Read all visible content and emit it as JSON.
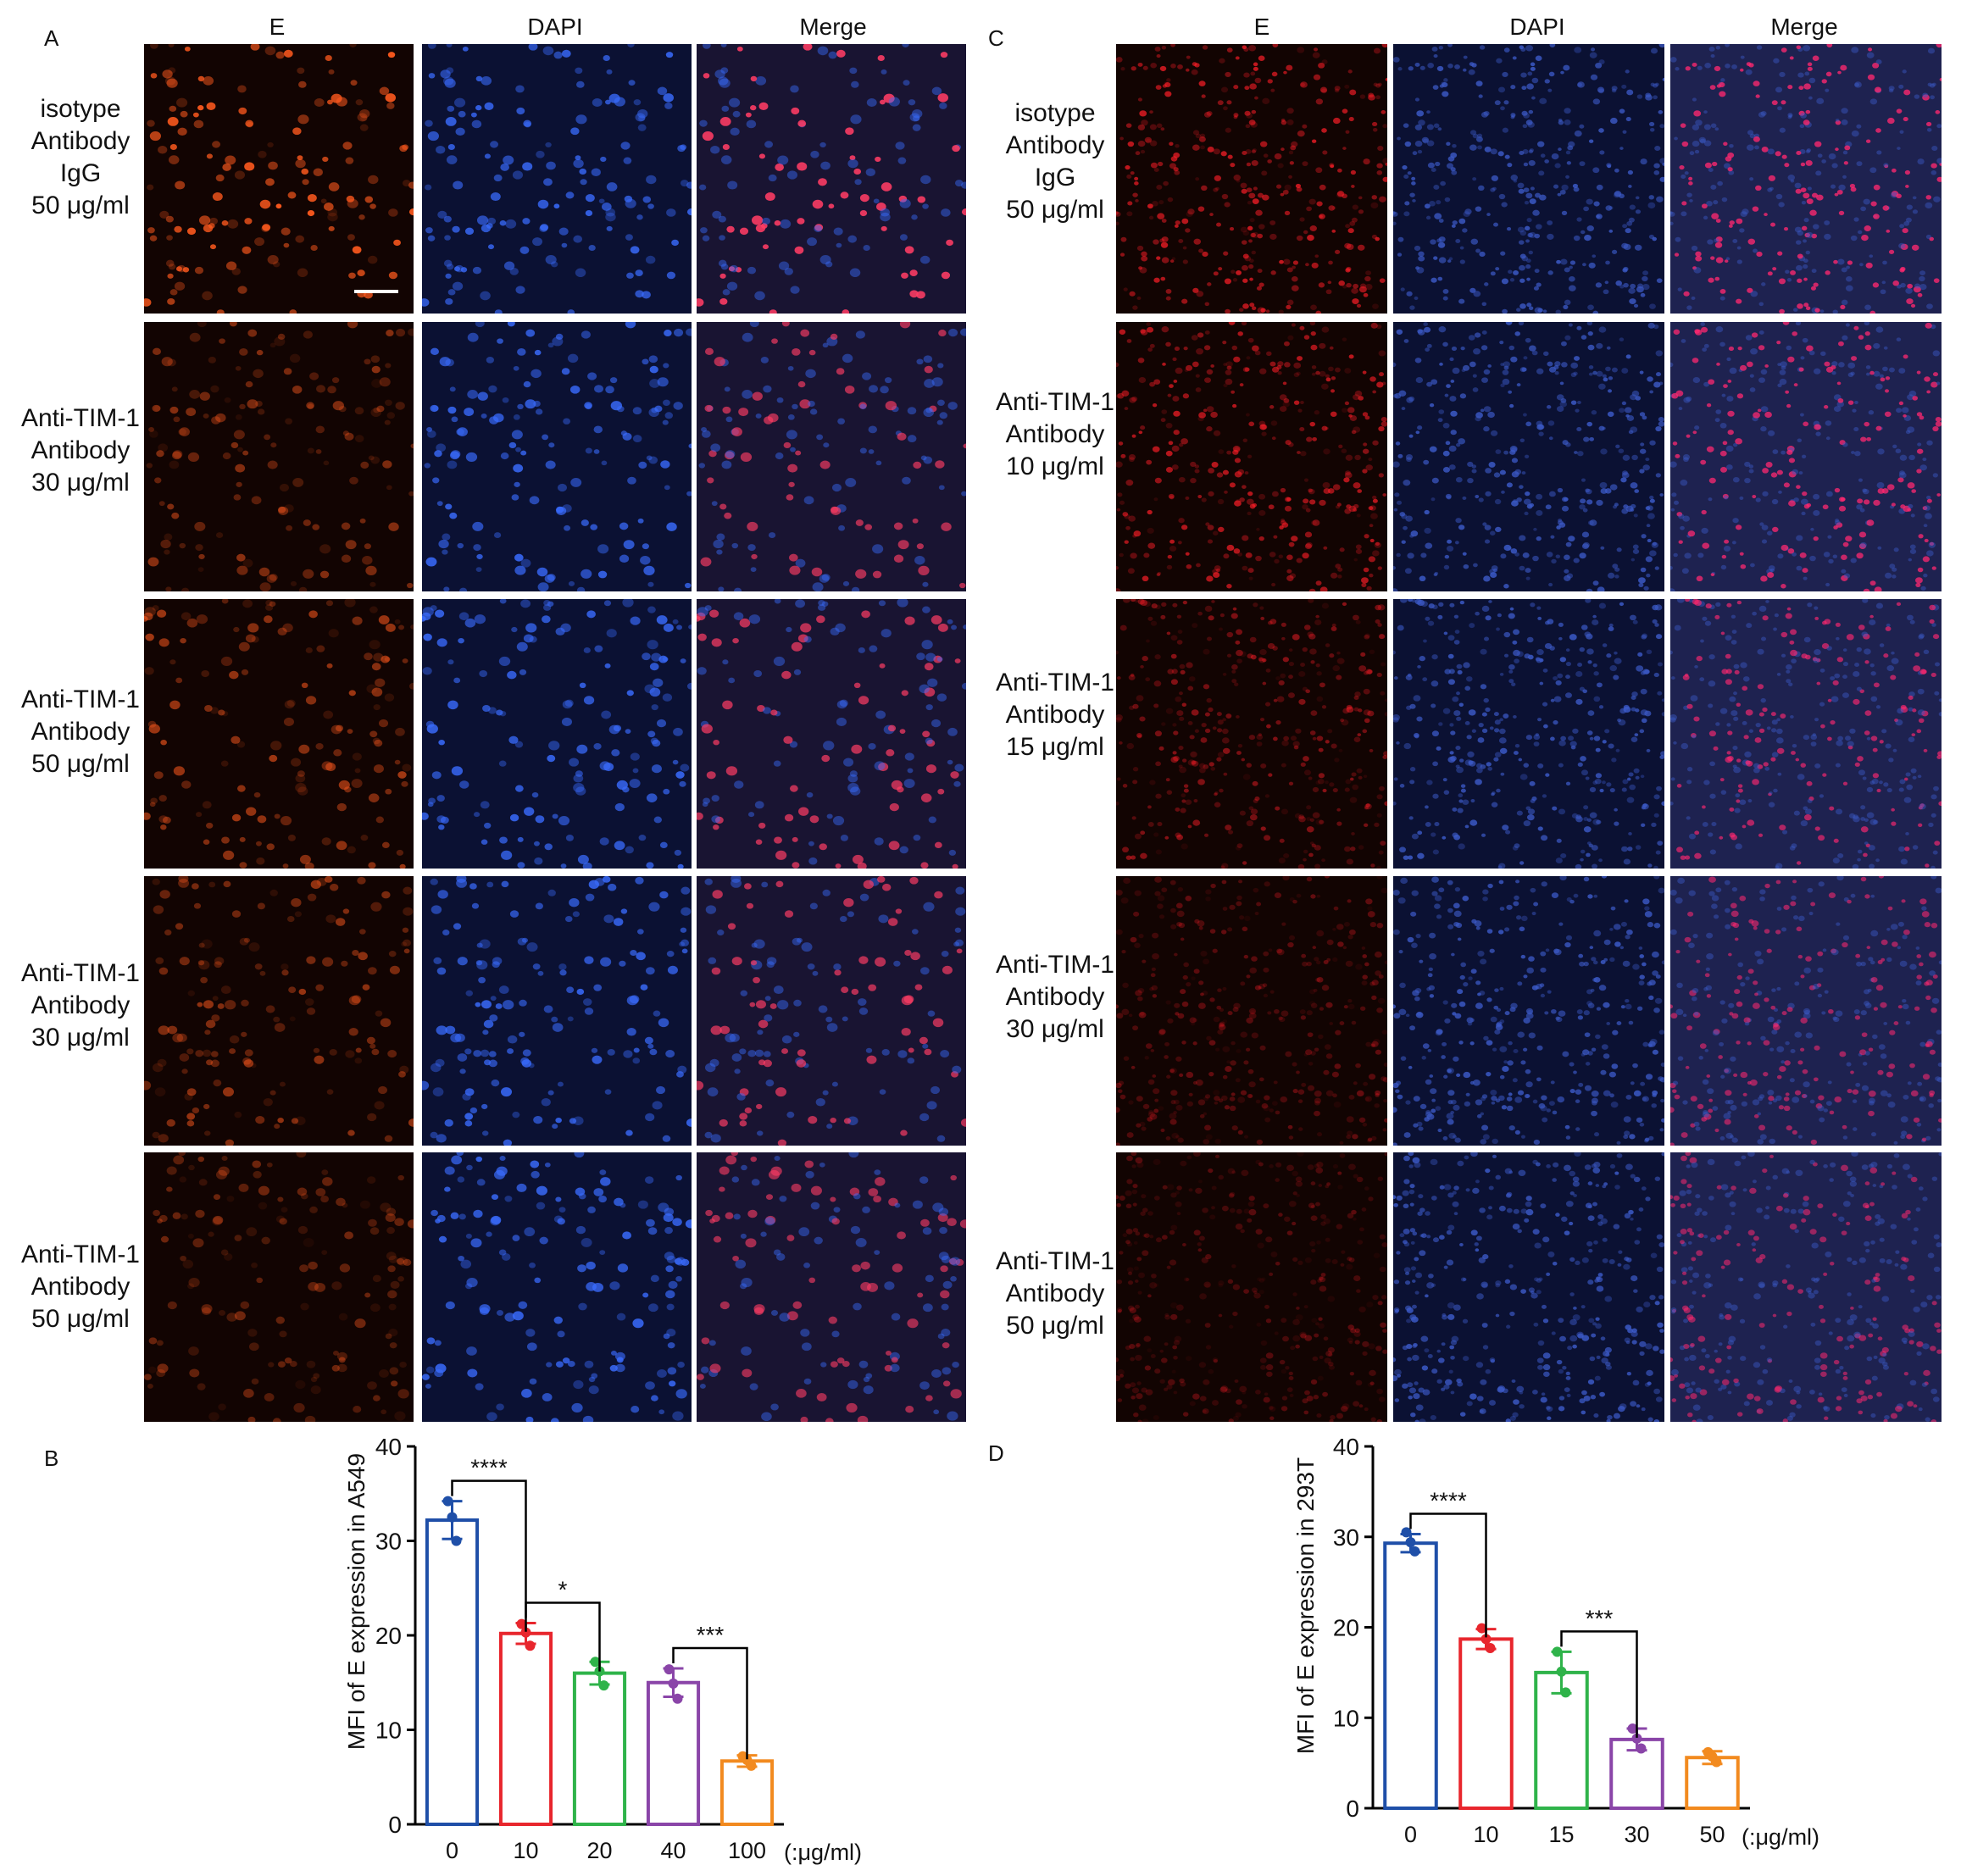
{
  "panels": {
    "a": {
      "letter": "A",
      "columns": [
        "E",
        "DAPI",
        "Merge"
      ],
      "rows": [
        {
          "lines": [
            "isotype",
            "Antibody",
            "IgG",
            "50 μg/ml"
          ]
        },
        {
          "lines": [
            "Anti-TIM-1",
            "Antibody",
            "30 μg/ml"
          ]
        },
        {
          "lines": [
            "Anti-TIM-1",
            "Antibody",
            "50 μg/ml"
          ]
        },
        {
          "lines": [
            "Anti-TIM-1",
            "Antibody",
            "30 μg/ml"
          ]
        },
        {
          "lines": [
            "Anti-TIM-1",
            "Antibody",
            "50 μg/ml"
          ]
        }
      ],
      "e_intensity": [
        0.95,
        0.5,
        0.6,
        0.55,
        0.4
      ],
      "colors": {
        "e": "#ff5a1e",
        "dapi": "#3a6cff",
        "merge_cell": "#ff3c64",
        "merge_bg": "#191432"
      }
    },
    "c": {
      "letter": "C",
      "columns": [
        "E",
        "DAPI",
        "Merge"
      ],
      "rows": [
        {
          "lines": [
            "isotype",
            "Antibody",
            "IgG",
            "50 μg/ml"
          ]
        },
        {
          "lines": [
            "Anti-TIM-1",
            "Antibody",
            "10 μg/ml"
          ]
        },
        {
          "lines": [
            "Anti-TIM-1",
            "Antibody",
            "15 μg/ml"
          ]
        },
        {
          "lines": [
            "Anti-TIM-1",
            "Antibody",
            "30 μg/ml"
          ]
        },
        {
          "lines": [
            "Anti-TIM-1",
            "Antibody",
            "50 μg/ml"
          ]
        }
      ],
      "e_intensity": [
        0.75,
        0.7,
        0.5,
        0.35,
        0.3
      ],
      "colors": {
        "e": "#ff1e28",
        "dapi": "#3c5ac8",
        "merge_cell": "#ff2870",
        "merge_bg": "#1e2250"
      }
    },
    "b_letter": "B",
    "d_letter": "D"
  },
  "chart_data": [
    {
      "type": "bar",
      "panel": "B",
      "categories": [
        "0",
        "10",
        "20",
        "40",
        "100"
      ],
      "unit_label": "(:μg/ml)",
      "ylabel": "MFI of E expression in A549",
      "ylim": [
        0,
        40
      ],
      "yticks": [
        0,
        10,
        20,
        30,
        40
      ],
      "values": [
        32.2,
        20.2,
        16.0,
        15.0,
        6.7
      ],
      "errors": [
        2.0,
        1.1,
        1.2,
        1.5,
        0.6
      ],
      "points": [
        [
          34.2,
          32.5,
          30.0
        ],
        [
          21.2,
          20.3,
          18.9
        ],
        [
          17.2,
          16.2,
          14.7
        ],
        [
          16.4,
          14.9,
          13.3
        ],
        [
          7.2,
          6.8,
          6.2
        ]
      ],
      "colors": [
        "#1f4fa8",
        "#e8262d",
        "#2fb34a",
        "#8a45a8",
        "#f28a1f"
      ],
      "significance": [
        {
          "from": "0",
          "to": "10",
          "label": "****"
        },
        {
          "from": "10",
          "to": "20",
          "label": "*"
        },
        {
          "from": "40",
          "to": "100",
          "label": "***"
        }
      ]
    },
    {
      "type": "bar",
      "panel": "D",
      "categories": [
        "0",
        "10",
        "15",
        "30",
        "50"
      ],
      "unit_label": "(:μg/ml)",
      "ylabel": "MFI of E expression in 293T",
      "ylim": [
        0,
        40
      ],
      "yticks": [
        0,
        10,
        20,
        30,
        40
      ],
      "values": [
        29.3,
        18.7,
        15.0,
        7.6,
        5.6
      ],
      "errors": [
        1.0,
        1.1,
        2.3,
        1.2,
        0.7
      ],
      "points": [
        [
          30.5,
          29.4,
          28.4
        ],
        [
          19.9,
          18.7,
          17.7
        ],
        [
          17.3,
          15.1,
          12.8
        ],
        [
          8.8,
          7.7,
          6.6
        ],
        [
          6.2,
          5.7,
          5.1
        ]
      ],
      "colors": [
        "#1f4fa8",
        "#e8262d",
        "#2fb34a",
        "#8a45a8",
        "#f28a1f"
      ],
      "significance": [
        {
          "from": "0",
          "to": "10",
          "label": "****"
        },
        {
          "from": "15",
          "to": "30",
          "label": "***"
        }
      ]
    }
  ]
}
